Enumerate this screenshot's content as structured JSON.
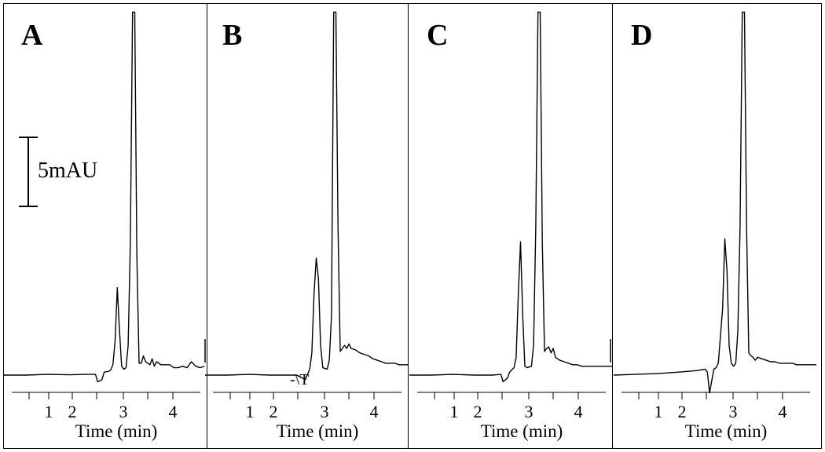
{
  "scale_bar": {
    "label": "5mAU"
  },
  "chart_data": [
    {
      "type": "line",
      "panel_label": "A",
      "xlabel": "Time (min)",
      "ylabel": "",
      "x_ticks": [
        "1",
        "2",
        "3",
        "4"
      ],
      "xlim": [
        0,
        4.65
      ],
      "ylim": [
        -1.5,
        25
      ],
      "series": [
        {
          "x": [
            0.0,
            0.5,
            1.0,
            1.5,
            1.9,
            2.1,
            2.15,
            2.25,
            2.3,
            2.4,
            2.45,
            2.5,
            2.55,
            2.6,
            2.65,
            2.7,
            2.75,
            2.8,
            2.85,
            2.9,
            2.95,
            3.0,
            3.05,
            3.1,
            3.15,
            3.2,
            3.25,
            3.35,
            3.4,
            3.45,
            3.5,
            3.6,
            3.7,
            3.8,
            3.9,
            4.0,
            4.1,
            4.2,
            4.3,
            4.4,
            4.5,
            4.6
          ],
          "y": [
            0.0,
            0.0,
            0.05,
            0.02,
            0.05,
            0.05,
            -0.45,
            -0.3,
            0.2,
            0.25,
            0.35,
            0.7,
            2.3,
            5.9,
            3.1,
            0.6,
            0.4,
            0.5,
            2.0,
            9.0,
            24.5,
            24.5,
            8.0,
            0.8,
            0.8,
            1.3,
            0.9,
            0.7,
            1.1,
            0.6,
            0.9,
            0.7,
            0.7,
            0.7,
            0.5,
            0.5,
            0.6,
            0.5,
            0.9,
            0.6,
            0.5,
            0.6
          ]
        }
      ]
    },
    {
      "type": "line",
      "panel_label": "B",
      "xlabel": "Time (min)",
      "ylabel": "",
      "x_ticks": [
        "1",
        "2",
        "3",
        "4"
      ],
      "xlim": [
        0,
        4.65
      ],
      "ylim": [
        -1.5,
        25
      ],
      "annotation": "-\\T",
      "series": [
        {
          "x": [
            0.0,
            0.5,
            1.0,
            1.5,
            1.9,
            2.1,
            2.3,
            2.4,
            2.45,
            2.5,
            2.55,
            2.6,
            2.65,
            2.7,
            2.8,
            2.85,
            2.9,
            2.95,
            3.0,
            3.05,
            3.1,
            3.15,
            3.2,
            3.25,
            3.3,
            3.35,
            3.45,
            3.55,
            3.65,
            3.75,
            3.85,
            3.95,
            4.05,
            4.15,
            4.25,
            4.35,
            4.45,
            4.55,
            4.65
          ],
          "y": [
            0.0,
            0.0,
            0.05,
            0.0,
            0.0,
            0.0,
            -0.3,
            0.4,
            1.5,
            5.5,
            7.9,
            6.5,
            2.0,
            0.5,
            0.4,
            1.0,
            4.0,
            24.5,
            24.5,
            10.0,
            1.6,
            1.8,
            2.0,
            1.8,
            2.1,
            1.8,
            1.7,
            1.5,
            1.4,
            1.3,
            1.1,
            1.0,
            0.9,
            0.8,
            0.8,
            0.8,
            0.7,
            0.7,
            0.7
          ]
        }
      ]
    },
    {
      "type": "line",
      "panel_label": "C",
      "xlabel": "Time (min)",
      "ylabel": "",
      "x_ticks": [
        "1",
        "2",
        "3",
        "4"
      ],
      "xlim": [
        0,
        4.65
      ],
      "ylim": [
        -1.5,
        25
      ],
      "series": [
        {
          "x": [
            0.0,
            0.5,
            1.0,
            1.5,
            1.9,
            2.1,
            2.15,
            2.25,
            2.3,
            2.4,
            2.45,
            2.5,
            2.55,
            2.6,
            2.65,
            2.7,
            2.8,
            2.85,
            2.9,
            2.95,
            3.0,
            3.05,
            3.1,
            3.15,
            3.2,
            3.25,
            3.3,
            3.35,
            3.45,
            3.55,
            3.65,
            3.75,
            3.85,
            3.95,
            4.05,
            4.15,
            4.25,
            4.35,
            4.45,
            4.55,
            4.65
          ],
          "y": [
            0.0,
            0.0,
            0.05,
            0.0,
            0.0,
            0.05,
            -0.45,
            -0.2,
            0.2,
            0.5,
            1.2,
            5.5,
            9.0,
            4.0,
            0.6,
            0.5,
            0.6,
            2.0,
            10.0,
            24.5,
            24.5,
            9.0,
            1.6,
            1.8,
            1.9,
            1.5,
            1.8,
            1.2,
            1.0,
            0.9,
            0.8,
            0.7,
            0.7,
            0.6,
            0.6,
            0.6,
            0.6,
            0.6,
            0.6,
            0.6,
            0.6
          ]
        }
      ]
    },
    {
      "type": "line",
      "panel_label": "D",
      "xlabel": "Time (min)",
      "ylabel": "",
      "x_ticks": [
        "1",
        "2",
        "3",
        "4"
      ],
      "xlim": [
        0,
        4.65
      ],
      "ylim": [
        -1.5,
        25
      ],
      "series": [
        {
          "x": [
            0.0,
            0.5,
            1.0,
            1.5,
            1.9,
            2.1,
            2.15,
            2.2,
            2.25,
            2.3,
            2.35,
            2.4,
            2.5,
            2.55,
            2.6,
            2.65,
            2.7,
            2.75,
            2.8,
            2.85,
            2.9,
            2.95,
            3.0,
            3.05,
            3.1,
            3.15,
            3.2,
            3.25,
            3.3,
            3.4,
            3.5,
            3.6,
            3.7,
            3.8,
            3.9,
            4.0,
            4.1,
            4.2,
            4.3,
            4.4,
            4.5,
            4.6,
            4.65
          ],
          "y": [
            0.0,
            0.05,
            0.1,
            0.2,
            0.3,
            0.4,
            0.2,
            -1.2,
            -0.4,
            0.4,
            0.5,
            0.8,
            4.5,
            9.2,
            7.0,
            2.0,
            0.8,
            0.6,
            0.8,
            3.0,
            10.0,
            24.5,
            24.5,
            10.0,
            1.5,
            1.3,
            1.2,
            1.0,
            1.2,
            1.1,
            1.0,
            0.9,
            0.9,
            0.8,
            0.8,
            0.8,
            0.8,
            0.7,
            0.7,
            0.7,
            0.7,
            0.7,
            0.7
          ]
        }
      ]
    }
  ]
}
